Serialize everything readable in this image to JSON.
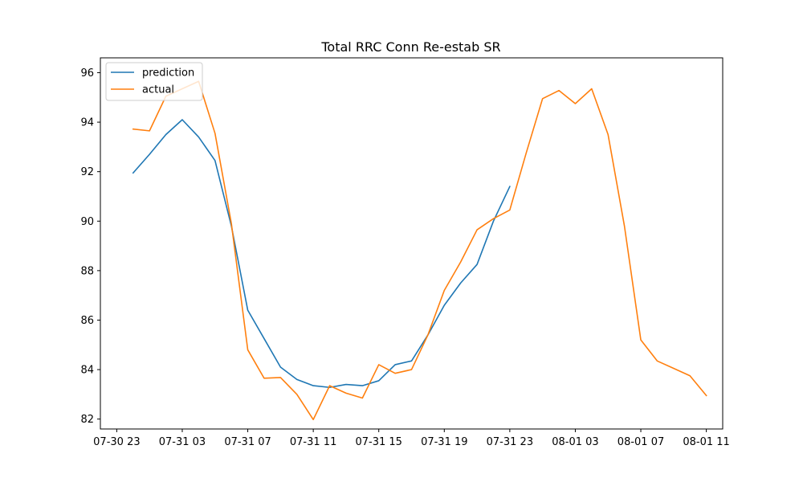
{
  "chart_data": {
    "type": "line",
    "title": "Total RRC Conn Re-estab SR",
    "xlabel": "",
    "ylabel": "",
    "x_start": "2019-07-31T00:00",
    "x_step_hours": 1,
    "x_ticks": [
      "07-30 23",
      "07-31 03",
      "07-31 07",
      "07-31 11",
      "07-31 15",
      "07-31 19",
      "07-31 23",
      "08-01 03",
      "08-01 07",
      "08-01 11"
    ],
    "y_ticks": [
      "82",
      "84",
      "86",
      "88",
      "90",
      "92",
      "94",
      "96"
    ],
    "xlim": [
      "2019-07-30T22:00",
      "2019-08-01T12:00"
    ],
    "ylim": [
      81.6,
      96.6
    ],
    "grid": false,
    "legend_position": "top-left",
    "series": [
      {
        "name": "prediction",
        "color": "#1f77b4",
        "values": [
          91.95,
          92.7,
          93.5,
          94.1,
          93.4,
          92.45,
          89.8,
          86.4,
          85.25,
          84.1,
          83.6,
          83.35,
          83.28,
          83.4,
          83.35,
          83.55,
          84.2,
          84.35,
          85.4,
          86.6,
          87.5,
          88.25,
          90.0,
          91.4
        ]
      },
      {
        "name": "actual",
        "color": "#ff7f0e",
        "values": [
          93.72,
          93.65,
          95.05,
          95.35,
          95.65,
          93.55,
          89.9,
          84.8,
          83.65,
          83.68,
          83.0,
          81.98,
          83.35,
          83.05,
          82.85,
          84.2,
          83.85,
          84.0,
          85.4,
          87.2,
          88.35,
          89.65,
          90.1,
          90.45,
          92.75,
          94.95,
          95.28,
          94.75,
          95.35,
          93.5,
          89.8,
          85.2,
          84.35,
          84.05,
          83.75,
          82.95
        ]
      }
    ]
  }
}
